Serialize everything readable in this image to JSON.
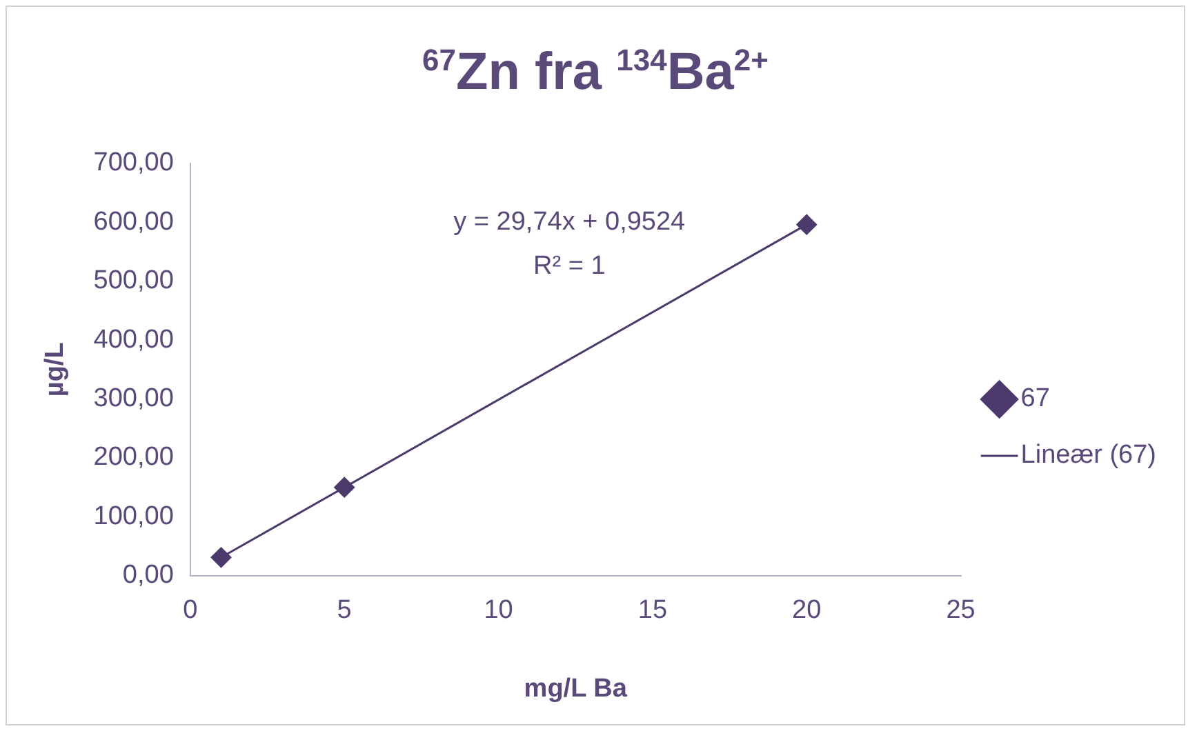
{
  "chart_data": {
    "type": "scatter",
    "title": "$^{67}$Zn fra $^{134}$Ba$^{2+}$",
    "xlabel": "mg/L Ba",
    "ylabel": "µg/L",
    "series": [
      {
        "name": "67",
        "type": "scatter",
        "color": "#4b3a6b",
        "x": [
          1,
          5,
          20
        ],
        "values": [
          31,
          150,
          596
        ],
        "marker": "diamond"
      },
      {
        "name": "Lineær (67)",
        "type": "line",
        "color": "#4b3a6b",
        "x": [
          1,
          20
        ],
        "values": [
          31,
          596
        ],
        "marker": "none"
      }
    ],
    "xlim": [
      0,
      25
    ],
    "xticks": [
      0,
      5,
      10,
      15,
      20,
      25
    ],
    "ylim": [
      0,
      700
    ],
    "yticks": [
      {
        "value": 0,
        "label": "0,00"
      },
      {
        "value": 100,
        "label": "100,00"
      },
      {
        "value": 200,
        "label": "200,00"
      },
      {
        "value": 300,
        "label": "300,00"
      },
      {
        "value": 400,
        "label": "400,00"
      },
      {
        "value": 500,
        "label": "500,00"
      },
      {
        "value": 600,
        "label": "600,00"
      },
      {
        "value": 700,
        "label": "700,00"
      }
    ],
    "annotations": [
      "y = 29,74x + 0,9524",
      "R² = 1"
    ],
    "grid": false,
    "legend": "right"
  }
}
